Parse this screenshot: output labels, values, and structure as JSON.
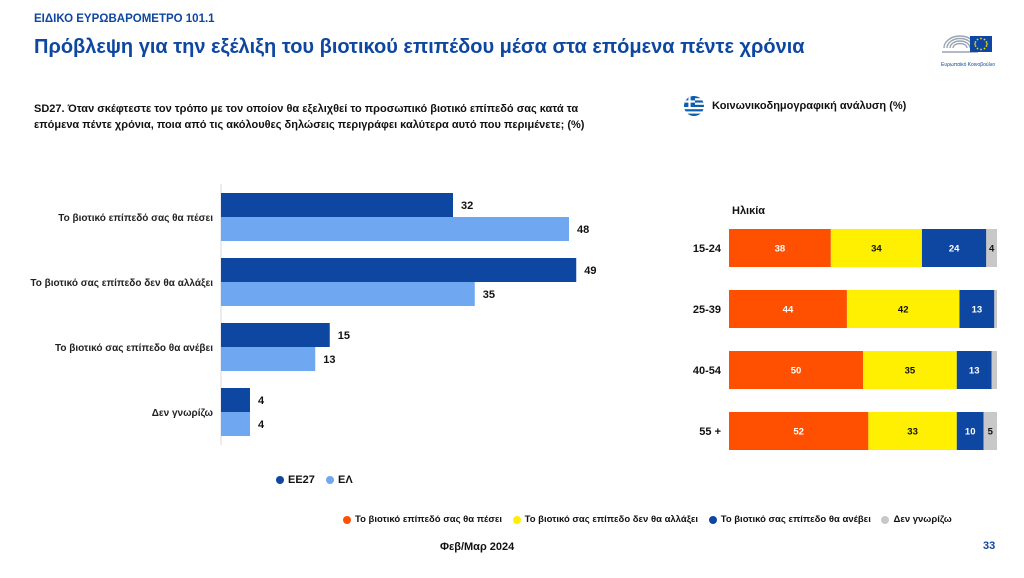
{
  "header": {
    "supertitle": "ΕΙΔΙΚΟ ΕΥΡΩΒΑΡΟΜΕΤΡΟ 101.1",
    "title": "Πρόβλεψη για την εξέλιξη του βιοτικού επιπέδου μέσα στα επόμενα πέντε χρόνια",
    "logo_text": "Ευρωπαϊκό Κοινοβούλιο"
  },
  "question": "SD27. Όταν σκέφτεστε τον τρόπο με τον οποίον θα εξελιχθεί το προσωπικό βιοτικό επίπεδό σας κατά τα επόμενα πέντε χρόνια, ποια από τις ακόλουθες δηλώσεις περιγράφει καλύτερα αυτό που περιμένετε; (%)",
  "socio_label": "Κοινωνικοδημογραφική ανάλυση (%)",
  "footer": {
    "date": "Φεβ/Μαρ 2024",
    "page": "33"
  },
  "colors": {
    "eu27": "#0e47a1",
    "el": "#6fa8f0",
    "fall": "#ff4f00",
    "same": "#ffef00",
    "rise": "#0e47a1",
    "dk": "#c8c8c8"
  },
  "chart_data": [
    {
      "type": "bar",
      "orientation": "horizontal",
      "categories": [
        "Το βιοτικό επίπεδό σας θα πέσει",
        "Το βιοτικό σας επίπεδο δεν θα αλλάξει",
        "Το βιοτικό σας επίπεδο θα ανέβει",
        "Δεν γνωρίζω"
      ],
      "series": [
        {
          "name": "ΕΕ27",
          "values": [
            32,
            49,
            15,
            4
          ]
        },
        {
          "name": "ΕΛ",
          "values": [
            48,
            35,
            13,
            4
          ]
        }
      ],
      "legend_position": "bottom",
      "grid": false
    },
    {
      "type": "bar",
      "orientation": "horizontal",
      "stacked": true,
      "title": "Ηλικία",
      "categories": [
        "15-24",
        "25-39",
        "40-54",
        "55 +"
      ],
      "series": [
        {
          "name": "Το βιοτικό επίπεδό σας θα πέσει",
          "values": [
            38,
            44,
            50,
            52
          ]
        },
        {
          "name": "Το βιοτικό σας επίπεδο δεν θα αλλάξει",
          "values": [
            34,
            42,
            35,
            33
          ]
        },
        {
          "name": "Το βιοτικό σας επίπεδο θα ανέβει",
          "values": [
            24,
            13,
            13,
            10
          ]
        },
        {
          "name": "Δεν γνωρίζω",
          "values": [
            4,
            1,
            2,
            5
          ]
        }
      ],
      "shown_labels": [
        [
          "38",
          "34",
          "24",
          "4"
        ],
        [
          "44",
          "42",
          "13",
          ""
        ],
        [
          "50",
          "35",
          "13",
          ""
        ],
        [
          "52",
          "33",
          "10",
          "5"
        ]
      ],
      "legend_position": "bottom",
      "grid": false
    }
  ]
}
